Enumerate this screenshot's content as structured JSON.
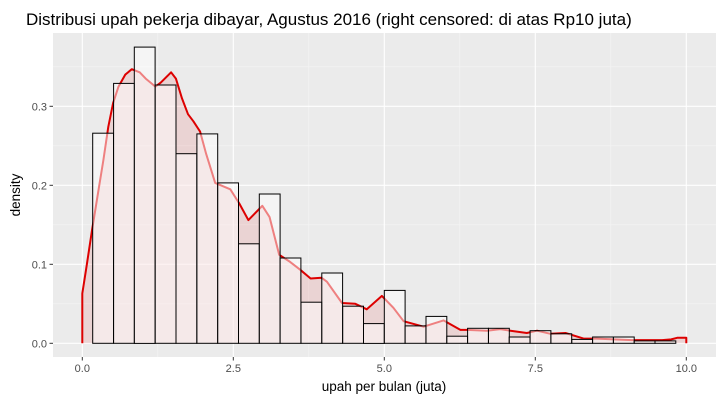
{
  "chart_data": {
    "type": "bar",
    "subtype": "histogram_with_density",
    "title": "Distribusi upah pekerja dibayar, Agustus 2016 (right censored: di atas Rp10 juta)",
    "xlabel": "upah per bulan (juta)",
    "ylabel": "density",
    "xlim": [
      -0.48,
      10.5
    ],
    "ylim": [
      -0.017,
      0.393
    ],
    "x_ticks": [
      0.0,
      2.5,
      5.0,
      7.5,
      10.0
    ],
    "x_tick_labels": [
      "0.0",
      "2.5",
      "5.0",
      "7.5",
      "10.0"
    ],
    "y_ticks": [
      0.0,
      0.1,
      0.2,
      0.3
    ],
    "y_tick_labels": [
      "0.0",
      "0.1",
      "0.2",
      "0.3"
    ],
    "grid": true,
    "legend": null,
    "bin_width": 0.3448,
    "bin_centers": [
      0.345,
      0.69,
      1.034,
      1.379,
      1.724,
      2.069,
      2.414,
      2.759,
      3.103,
      3.448,
      3.793,
      4.138,
      4.483,
      4.828,
      5.172,
      5.517,
      5.862,
      6.207,
      6.552,
      6.897,
      7.241,
      7.586,
      7.931,
      8.276,
      8.621,
      8.966,
      9.31,
      9.655
    ],
    "series": [
      {
        "name": "histogram",
        "type": "bar",
        "values": [
          0.266,
          0.329,
          0.375,
          0.327,
          0.24,
          0.265,
          0.203,
          0.126,
          0.189,
          0.108,
          0.052,
          0.089,
          0.047,
          0.025,
          0.067,
          0.022,
          0.034,
          0.009,
          0.019,
          0.019,
          0.008,
          0.016,
          0.012,
          0.005,
          0.008,
          0.008,
          0.003,
          0.003
        ]
      },
      {
        "name": "density",
        "type": "area",
        "x": [
          0.0,
          0.0,
          0.07,
          0.16,
          0.26,
          0.35,
          0.43,
          0.51,
          0.6,
          0.71,
          0.82,
          0.95,
          1.05,
          1.21,
          1.3,
          1.47,
          1.55,
          1.65,
          1.75,
          1.84,
          1.95,
          2.05,
          2.2,
          2.45,
          2.6,
          2.75,
          2.98,
          3.1,
          3.26,
          3.44,
          3.61,
          3.78,
          3.96,
          4.05,
          4.3,
          4.52,
          4.71,
          4.96,
          5.15,
          5.32,
          5.65,
          5.98,
          6.26,
          6.37,
          6.7,
          6.92,
          7.09,
          7.36,
          7.53,
          7.75,
          8.0,
          8.3,
          8.52,
          8.8,
          9.1,
          9.4,
          9.6,
          9.75,
          9.85,
          10.0,
          10.0
        ],
        "values": [
          0.0,
          0.063,
          0.097,
          0.143,
          0.19,
          0.232,
          0.274,
          0.304,
          0.325,
          0.34,
          0.347,
          0.343,
          0.335,
          0.325,
          0.33,
          0.343,
          0.335,
          0.31,
          0.29,
          0.281,
          0.268,
          0.24,
          0.203,
          0.195,
          0.177,
          0.156,
          0.174,
          0.16,
          0.112,
          0.103,
          0.093,
          0.082,
          0.083,
          0.078,
          0.051,
          0.05,
          0.043,
          0.06,
          0.045,
          0.028,
          0.021,
          0.029,
          0.017,
          0.017,
          0.016,
          0.018,
          0.016,
          0.013,
          0.016,
          0.012,
          0.013,
          0.006,
          0.006,
          0.005,
          0.004,
          0.004,
          0.004,
          0.005,
          0.007,
          0.007,
          0.0
        ]
      }
    ]
  },
  "style": {
    "panel_bg": "#ebebeb",
    "grid_major": "#ffffff",
    "grid_minor": "#f5f5f5",
    "density_line": "#dd0000",
    "density_fill": "#dd0000",
    "density_fill_opacity": 0.1,
    "bar_fill": "#ffffff",
    "bar_fill_opacity": 0.5,
    "bar_stroke": "#000000"
  }
}
